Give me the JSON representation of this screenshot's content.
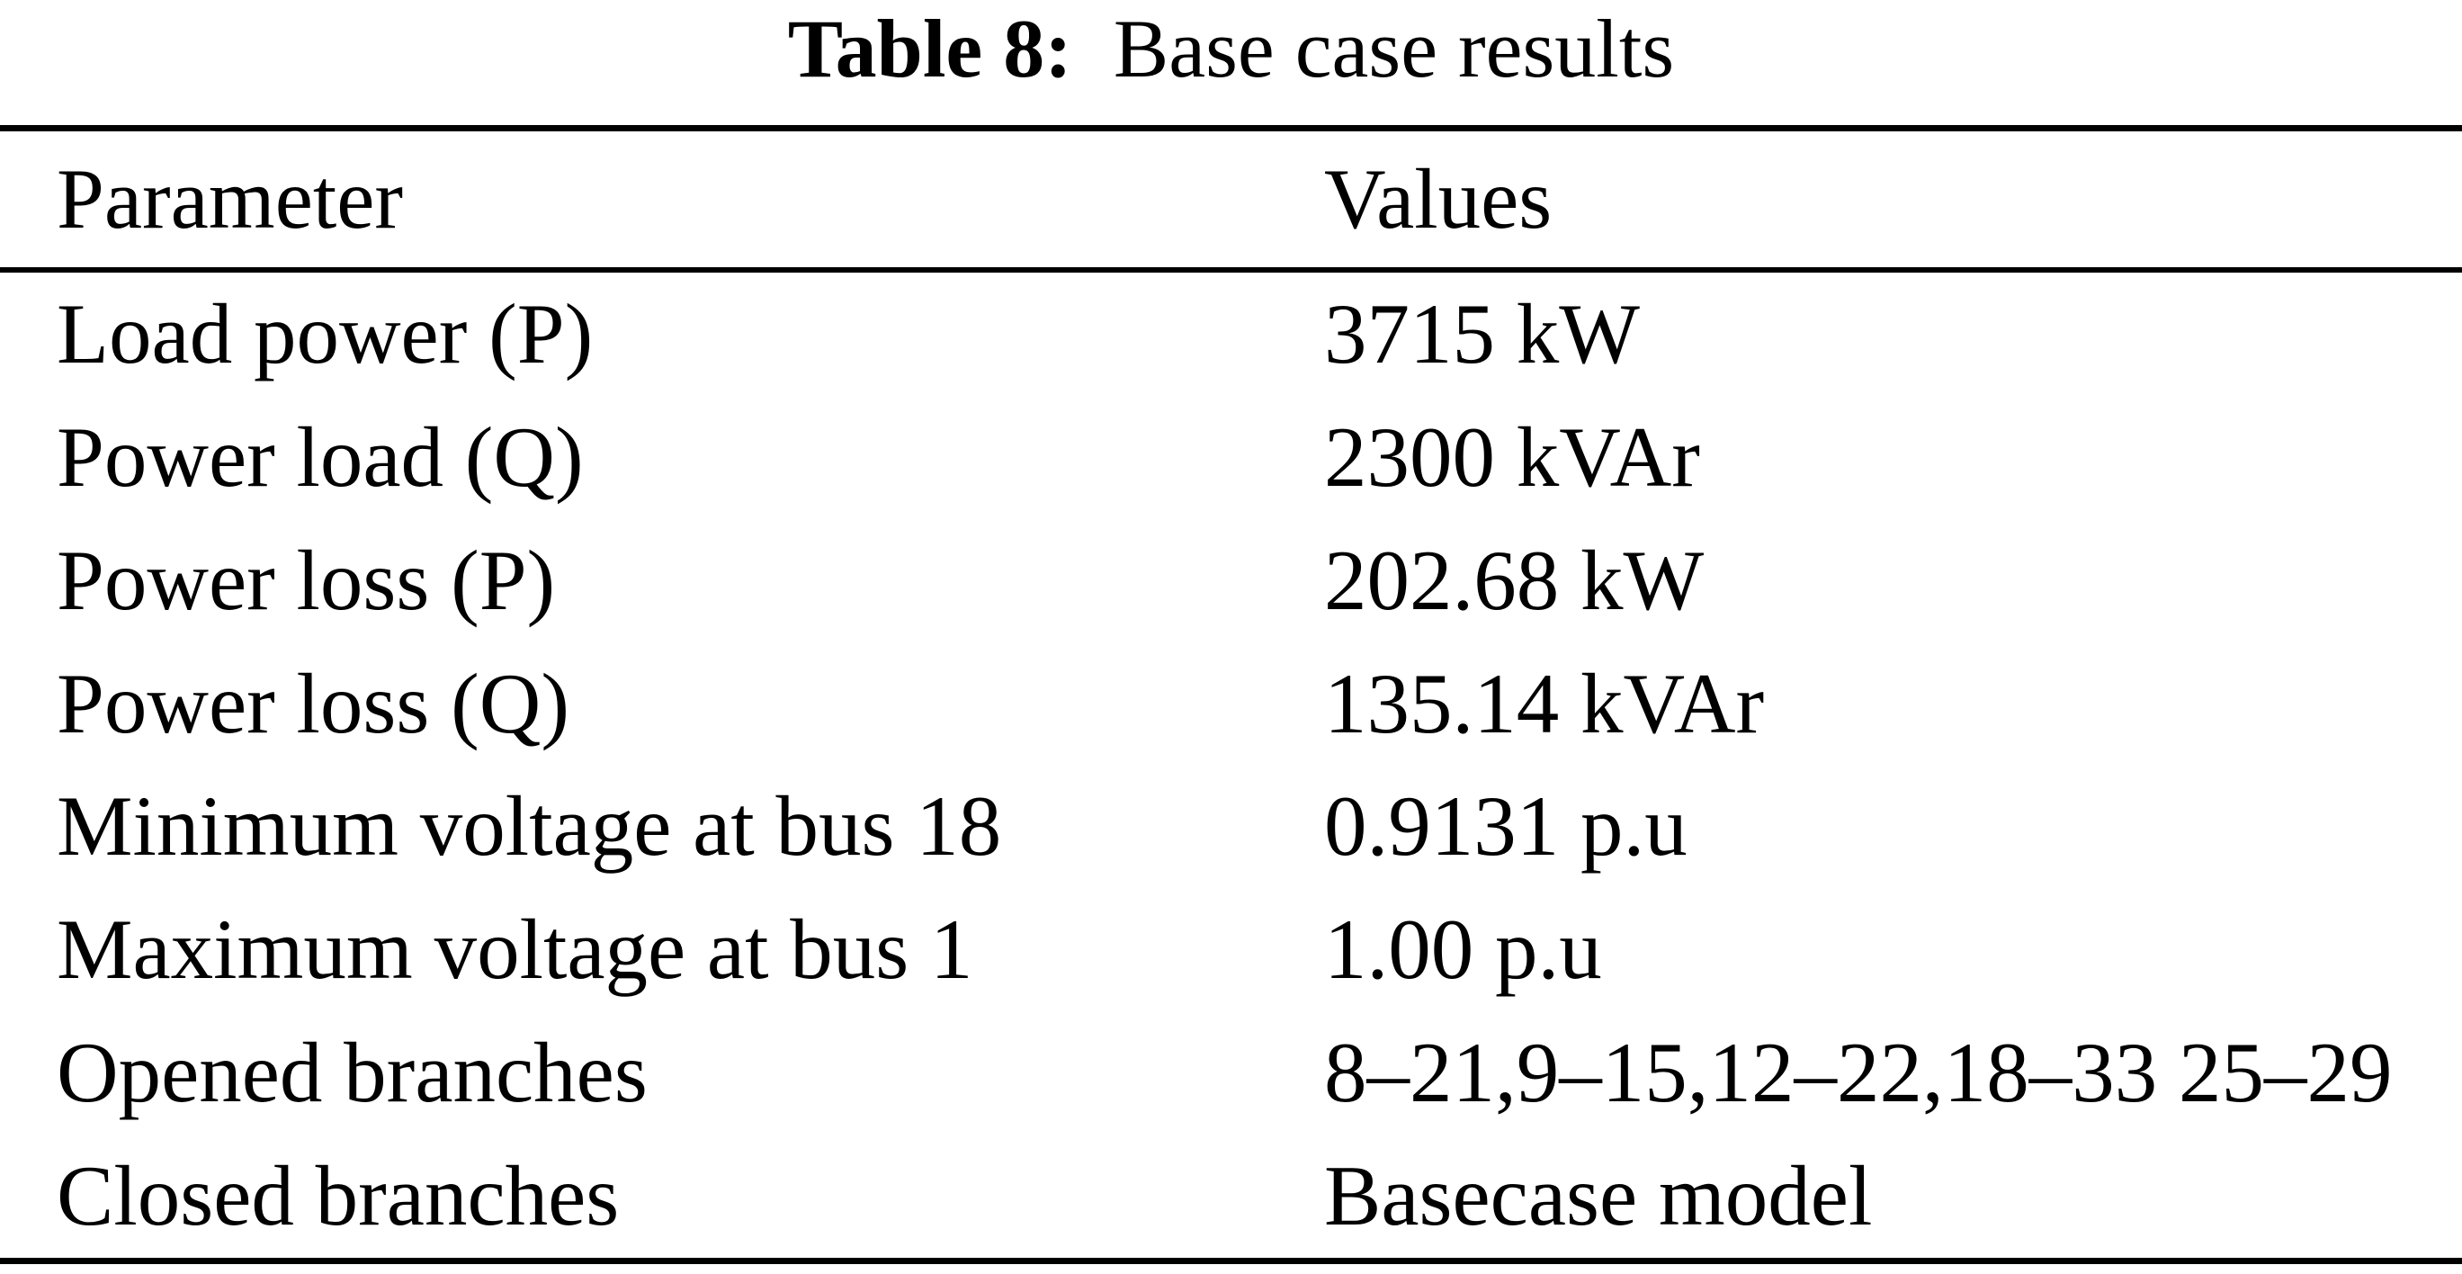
{
  "table": {
    "caption": {
      "label": "Table 8:",
      "title": "Base case results"
    },
    "columns": [
      "Parameter",
      "Values"
    ],
    "rows": [
      {
        "parameter": "Load power (P)",
        "value": "3715 kW"
      },
      {
        "parameter": "Power load (Q)",
        "value": "2300 kVAr"
      },
      {
        "parameter": "Power loss (P)",
        "value": "202.68 kW"
      },
      {
        "parameter": "Power loss (Q)",
        "value": "135.14 kVAr"
      },
      {
        "parameter": "Minimum voltage at bus 18",
        "value": "0.9131 p.u"
      },
      {
        "parameter": "Maximum voltage at bus 1",
        "value": "1.00 p.u"
      },
      {
        "parameter": "Opened branches",
        "value": "8–21,9–15,12–22,18–33 25–29"
      },
      {
        "parameter": "Closed branches",
        "value": "Basecase model"
      }
    ]
  },
  "colors": {
    "text": "#000000",
    "background": "#ffffff",
    "rule": "#000000"
  }
}
